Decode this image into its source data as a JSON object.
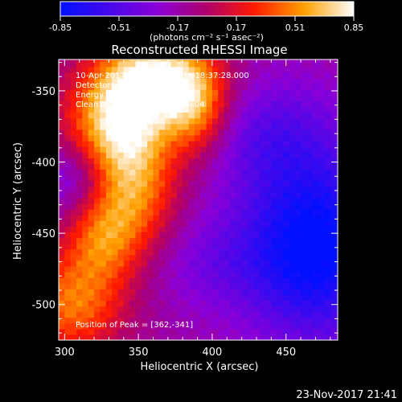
{
  "chart_data": {
    "type": "heatmap",
    "title": "Reconstructed RHESSI Image",
    "xlabel": "Heliocentric X (arcsec)",
    "ylabel": "Heliocentric Y (arcsec)",
    "xlim": [
      296,
      485
    ],
    "ylim": [
      -525,
      -328
    ],
    "xticks": [
      300,
      350,
      400,
      450
    ],
    "yticks": [
      -350,
      -400,
      -450,
      -500
    ],
    "colorbar": {
      "min": -0.85,
      "max": 0.85,
      "ticks": [
        "-0.85",
        "-0.51",
        "-0.17",
        "0.17",
        "0.51",
        "0.85"
      ],
      "label": "(photons cm⁻² s⁻¹ asec⁻²)"
    },
    "annotations": {
      "line1": "10-Apr-2017 18:37:08.000 to 18:37:28.000",
      "line2": "Detectors: 3F 6F 8F, Att 0",
      "line3": "Energy Range: 3.0 - 6.0 keV",
      "line4": "Clean     Total counts: 2.91E+04",
      "peak": "Position of Peak = [362,-341]"
    },
    "peak": [
      362,
      -341
    ],
    "sources": [
      {
        "x": 362,
        "y": -341,
        "amp": 1.0,
        "sx": 28,
        "sy": 22
      },
      {
        "x": 335,
        "y": -375,
        "amp": 0.75,
        "sx": 25,
        "sy": 25
      },
      {
        "x": 345,
        "y": -420,
        "amp": 0.65,
        "sx": 22,
        "sy": 30
      },
      {
        "x": 325,
        "y": -455,
        "amp": 0.45,
        "sx": 18,
        "sy": 22
      },
      {
        "x": 305,
        "y": -500,
        "amp": 0.6,
        "sx": 25,
        "sy": 25
      },
      {
        "x": 390,
        "y": -365,
        "amp": 0.5,
        "sx": 15,
        "sy": 22
      },
      {
        "x": 470,
        "y": -460,
        "amp": -0.75,
        "sx": 35,
        "sy": 45
      },
      {
        "x": 440,
        "y": -380,
        "amp": -0.3,
        "sx": 35,
        "sy": 30
      },
      {
        "x": 310,
        "y": -410,
        "amp": -0.35,
        "sx": 18,
        "sy": 20
      },
      {
        "x": 400,
        "y": -470,
        "amp": -0.2,
        "sx": 30,
        "sy": 25
      }
    ],
    "background": -0.15
  },
  "footer": {
    "timestamp": "23-Nov-2017 21:41"
  }
}
